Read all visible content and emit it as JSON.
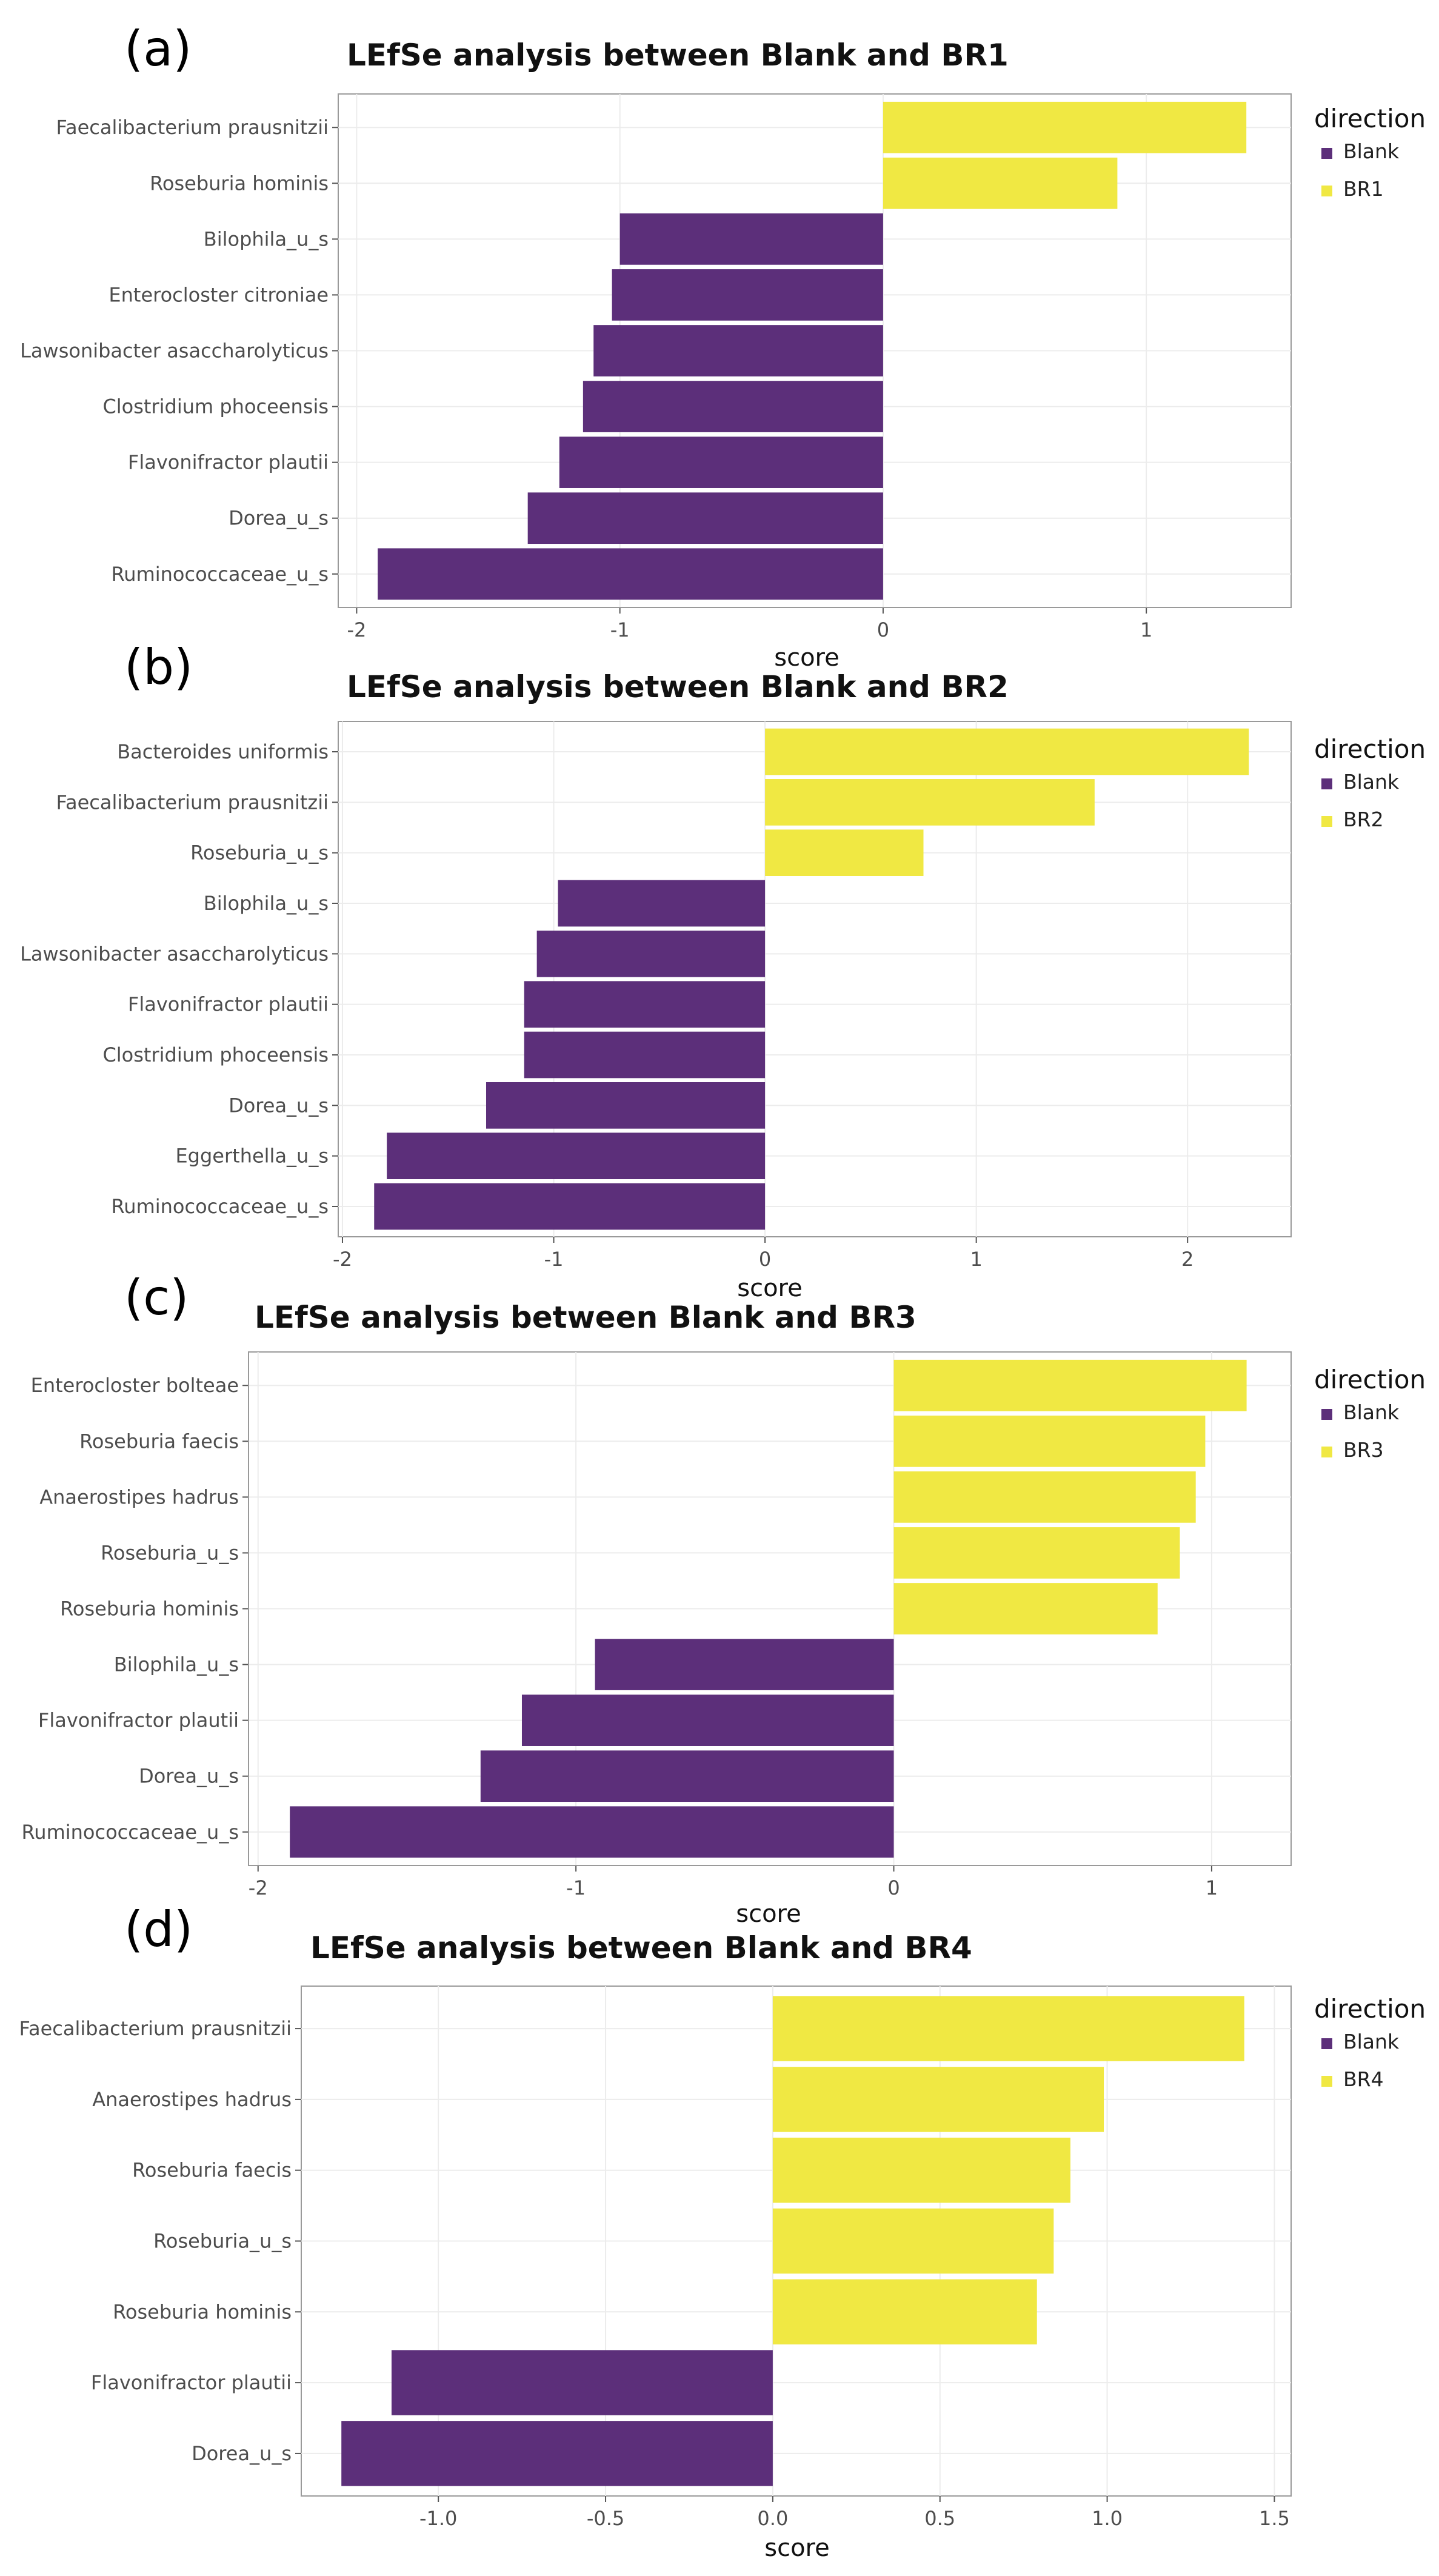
{
  "colors": {
    "Blank": "#5c2f7a",
    "BR": "#f0e843",
    "grid": "#ececec",
    "frame": "#9a9a9a",
    "text": "#4d4d4d",
    "title": "#111111"
  },
  "legend_title": "direction",
  "chart_data": [
    {
      "type": "bar",
      "panel_label": "(a)",
      "title": "LEfSe analysis between Blank and BR1",
      "xlabel": "score",
      "ylabel": "",
      "xlim": [
        -2.07,
        1.55
      ],
      "xticks": [
        -2,
        -1,
        0,
        1
      ],
      "xtick_labels": [
        "-2",
        "-1",
        "0",
        "1"
      ],
      "legend": [
        "Blank",
        "BR1"
      ],
      "categories": [
        "Faecalibacterium prausnitzii",
        "Roseburia hominis",
        "Bilophila_u_s",
        "Enterocloster citroniae",
        "Lawsonibacter asaccharolyticus",
        "Clostridium phoceensis",
        "Flavonifractor plautii",
        "Dorea_u_s",
        "Ruminococcaceae_u_s"
      ],
      "values": [
        1.38,
        0.89,
        -1.0,
        -1.03,
        -1.1,
        -1.14,
        -1.23,
        -1.35,
        -1.92
      ],
      "groups": [
        "BR1",
        "BR1",
        "Blank",
        "Blank",
        "Blank",
        "Blank",
        "Blank",
        "Blank",
        "Blank"
      ]
    },
    {
      "type": "bar",
      "panel_label": "(b)",
      "title": "LEfSe analysis between Blank and BR2",
      "xlabel": "score",
      "ylabel": "",
      "xlim": [
        -2.02,
        2.49
      ],
      "xticks": [
        -2,
        -1,
        0,
        1,
        2
      ],
      "xtick_labels": [
        "-2",
        "-1",
        "0",
        "1",
        "2"
      ],
      "legend": [
        "Blank",
        "BR2"
      ],
      "categories": [
        "Bacteroides uniformis",
        "Faecalibacterium prausnitzii",
        "Roseburia_u_s",
        "Bilophila_u_s",
        "Lawsonibacter asaccharolyticus",
        "Flavonifractor plautii",
        "Clostridium phoceensis",
        "Dorea_u_s",
        "Eggerthella_u_s",
        "Ruminococcaceae_u_s"
      ],
      "values": [
        2.29,
        1.56,
        0.75,
        -0.98,
        -1.08,
        -1.14,
        -1.14,
        -1.32,
        -1.79,
        -1.85
      ],
      "groups": [
        "BR2",
        "BR2",
        "BR2",
        "Blank",
        "Blank",
        "Blank",
        "Blank",
        "Blank",
        "Blank",
        "Blank"
      ]
    },
    {
      "type": "bar",
      "panel_label": "(c)",
      "title": "LEfSe analysis between Blank and BR3",
      "xlabel": "score",
      "ylabel": "",
      "xlim": [
        -2.03,
        1.25
      ],
      "xticks": [
        -2,
        -1,
        0,
        1
      ],
      "xtick_labels": [
        "-2",
        "-1",
        "0",
        "1"
      ],
      "legend": [
        "Blank",
        "BR3"
      ],
      "categories": [
        "Enterocloster bolteae",
        "Roseburia faecis",
        "Anaerostipes hadrus",
        "Roseburia_u_s",
        "Roseburia hominis",
        "Bilophila_u_s",
        "Flavonifractor plautii",
        "Dorea_u_s",
        "Ruminococcaceae_u_s"
      ],
      "values": [
        1.11,
        0.98,
        0.95,
        0.9,
        0.83,
        -0.94,
        -1.17,
        -1.3,
        -1.9
      ],
      "groups": [
        "BR3",
        "BR3",
        "BR3",
        "BR3",
        "BR3",
        "Blank",
        "Blank",
        "Blank",
        "Blank"
      ]
    },
    {
      "type": "bar",
      "panel_label": "(d)",
      "title": "LEfSe analysis between Blank and BR4",
      "xlabel": "score",
      "ylabel": "",
      "xlim": [
        -1.41,
        1.55
      ],
      "xticks": [
        -1.0,
        -0.5,
        0.0,
        0.5,
        1.0,
        1.5
      ],
      "xtick_labels": [
        "-1.0",
        "-0.5",
        "0.0",
        "0.5",
        "1.0",
        "1.5"
      ],
      "legend": [
        "Blank",
        "BR4"
      ],
      "categories": [
        "Faecalibacterium prausnitzii",
        "Anaerostipes hadrus",
        "Roseburia faecis",
        "Roseburia_u_s",
        "Roseburia hominis",
        "Flavonifractor plautii",
        "Dorea_u_s"
      ],
      "values": [
        1.41,
        0.99,
        0.89,
        0.84,
        0.79,
        -1.14,
        -1.29
      ],
      "groups": [
        "BR4",
        "BR4",
        "BR4",
        "BR4",
        "BR4",
        "Blank",
        "Blank"
      ]
    }
  ]
}
